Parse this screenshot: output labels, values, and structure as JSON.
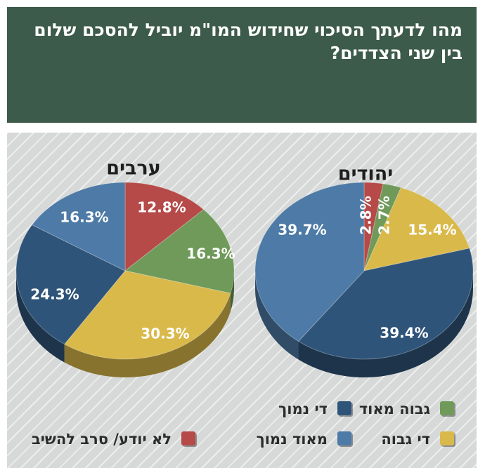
{
  "header": {
    "title": "מהו לדעתך הסיכוי שחידוש המו\"מ יוביל להסכם שלום בין שני הצדדים?"
  },
  "colors": {
    "very_high": "#6f9a5a",
    "fairly_high": "#d9b94a",
    "fairly_low": "#2f5479",
    "very_low": "#4d7aa6",
    "dont_know": "#b54a48",
    "header_bg": "#3d5b4a"
  },
  "chart_data": [
    {
      "type": "pie",
      "title": "יהודים",
      "labels": [
        "לא יודע/ סרב להשיב",
        "גבוה מאוד",
        "די גבוה",
        "די נמוך",
        "מאוד נמוך"
      ],
      "values": [
        2.8,
        2.7,
        15.4,
        39.4,
        39.7
      ],
      "value_labels": [
        "2.8%",
        "2.7%",
        "15.4%",
        "39.4%",
        "39.7%"
      ]
    },
    {
      "type": "pie",
      "title": "ערבים",
      "labels": [
        "לא יודע/ סרב להשיב",
        "גבוה מאוד",
        "די גבוה",
        "די נמוך",
        "מאוד נמוך"
      ],
      "values": [
        12.8,
        16.3,
        30.3,
        24.3,
        16.3
      ],
      "value_labels": [
        "12.8%",
        "16.3%",
        "30.3%",
        "24.3%",
        "16.3%"
      ]
    }
  ],
  "legend": {
    "very_high": "גבוה מאוד",
    "fairly_low": "די נמוך",
    "fairly_high": "די גבוה",
    "very_low": "מאוד נמוך",
    "dont_know": "לא יודע/ סרב להשיב"
  }
}
